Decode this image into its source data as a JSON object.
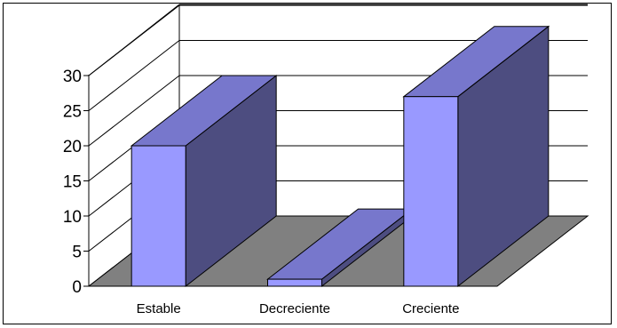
{
  "chart_data": {
    "type": "bar",
    "style": "3d-column",
    "categories": [
      "Estable",
      "Decreciente",
      "Creciente"
    ],
    "values": [
      20,
      1,
      27
    ],
    "ylim": [
      0,
      30
    ],
    "yticks": [
      "0",
      "5",
      "10",
      "15",
      "20",
      "25",
      "30"
    ],
    "grid": true,
    "legend": "none",
    "title": "",
    "xlabel": "",
    "ylabel": "",
    "colors": {
      "bar_front": "#9999ff",
      "bar_top": "#7777cc",
      "bar_side": "#4d4d80",
      "floor": "#808080",
      "gridline": "#000000"
    }
  }
}
